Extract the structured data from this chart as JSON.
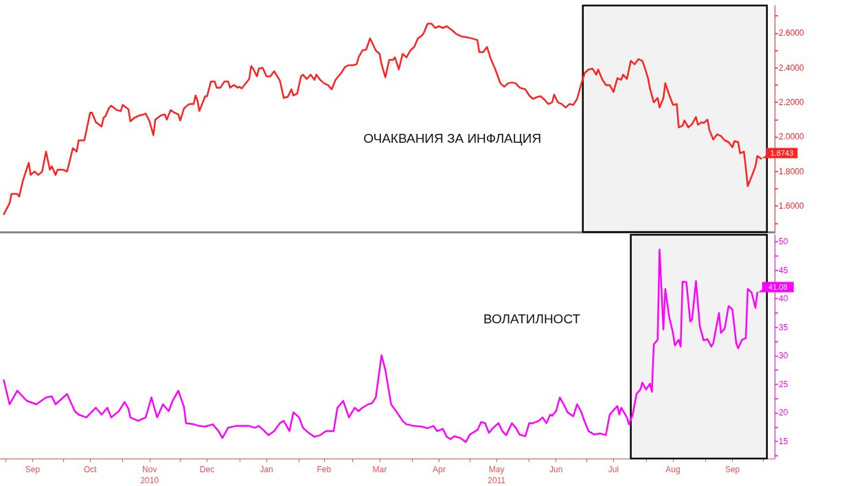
{
  "chart_data": [
    {
      "type": "line",
      "title": "ОЧАКВАНИЯ ЗА ИНФЛАЦИЯ",
      "x": [
        "2010-08-31",
        "2010-09-03",
        "2010-09-04",
        "2010-09-07",
        "2010-09-08",
        "2010-09-10",
        "2010-09-13",
        "2010-09-14",
        "2010-09-16",
        "2010-09-18",
        "2010-09-20",
        "2010-09-22",
        "2010-09-24",
        "2010-09-25",
        "2010-09-27",
        "2010-09-28",
        "2010-10-01",
        "2010-10-03",
        "2010-10-06",
        "2010-10-08",
        "2010-10-09",
        "2010-10-12",
        "2010-10-15",
        "2010-10-16",
        "2010-10-18",
        "2010-10-21",
        "2010-10-22",
        "2010-10-23",
        "2010-10-25",
        "2010-10-26",
        "2010-10-29",
        "2010-10-31",
        "2010-11-01",
        "2010-11-04",
        "2010-11-05",
        "2010-11-07",
        "2010-11-10",
        "2010-11-12",
        "2010-11-13",
        "2010-11-15",
        "2010-11-17",
        "2010-11-18",
        "2010-11-21",
        "2010-11-23",
        "2010-11-24",
        "2010-11-26",
        "2010-11-28",
        "2010-11-30",
        "2010-12-01",
        "2010-12-03",
        "2010-12-05",
        "2010-12-06",
        "2010-12-08",
        "2010-12-09",
        "2010-12-10",
        "2010-12-11",
        "2010-12-14",
        "2010-12-15",
        "2010-12-17",
        "2010-12-19",
        "2010-12-20",
        "2010-12-22",
        "2010-12-24",
        "2010-12-26",
        "2010-12-27",
        "2010-12-29",
        "2010-12-31",
        "2011-01-01",
        "2011-01-02",
        "2011-01-06",
        "2011-01-07",
        "2011-01-08",
        "2011-01-10",
        "2011-01-11",
        "2011-01-13",
        "2011-01-15",
        "2011-01-17",
        "2011-01-19",
        "2011-01-22",
        "2011-01-24",
        "2011-01-25",
        "2011-01-26",
        "2011-01-28",
        "2011-01-29",
        "2011-01-31",
        "2011-02-02",
        "2011-02-03",
        "2011-02-05",
        "2011-02-07",
        "2011-02-09",
        "2011-02-10",
        "2011-02-12",
        "2011-02-14",
        "2011-02-16",
        "2011-02-18",
        "2011-02-20",
        "2011-02-23",
        "2011-02-25",
        "2011-02-27",
        "2011-03-01",
        "2011-03-03",
        "2011-03-04",
        "2011-03-06",
        "2011-03-08",
        "2011-03-10",
        "2011-03-13",
        "2011-03-15",
        "2011-03-16",
        "2011-03-18",
        "2011-03-20",
        "2011-03-22",
        "2011-03-23",
        "2011-03-25",
        "2011-03-27",
        "2011-03-29",
        "2011-03-31",
        "2011-04-02",
        "2011-04-04",
        "2011-04-06",
        "2011-04-07",
        "2011-04-09",
        "2011-04-11",
        "2011-04-13",
        "2011-04-15",
        "2011-04-17",
        "2011-04-19",
        "2011-04-22",
        "2011-04-24",
        "2011-04-27",
        "2011-04-30",
        "2011-05-02",
        "2011-05-05",
        "2011-05-06",
        "2011-05-08",
        "2011-05-10",
        "2011-05-12",
        "2011-05-14",
        "2011-05-16",
        "2011-05-17",
        "2011-05-19",
        "2011-05-21",
        "2011-05-23",
        "2011-05-25",
        "2011-05-27",
        "2011-05-30",
        "2011-06-01",
        "2011-06-03",
        "2011-06-05",
        "2011-06-07",
        "2011-06-09",
        "2011-06-11",
        "2011-06-13",
        "2011-06-14",
        "2011-06-16",
        "2011-06-18",
        "2011-06-20",
        "2011-06-22",
        "2011-06-24",
        "2011-06-26",
        "2011-06-28",
        "2011-06-30",
        "2011-07-02",
        "2011-07-04",
        "2011-07-06",
        "2011-07-07",
        "2011-07-09",
        "2011-07-11",
        "2011-07-13",
        "2011-07-15",
        "2011-07-17",
        "2011-07-19",
        "2011-07-20",
        "2011-07-22",
        "2011-07-24",
        "2011-07-26",
        "2011-07-28",
        "2011-07-30",
        "2011-07-31",
        "2011-08-02",
        "2011-08-03",
        "2011-08-05",
        "2011-08-07",
        "2011-08-08",
        "2011-08-10",
        "2011-08-11",
        "2011-08-13",
        "2011-08-15",
        "2011-08-17",
        "2011-08-18",
        "2011-08-20",
        "2011-08-21",
        "2011-08-23",
        "2011-08-25",
        "2011-08-27",
        "2011-08-28",
        "2011-08-30",
        "2011-08-31",
        "2011-09-02",
        "2011-09-03",
        "2011-09-05",
        "2011-09-07",
        "2011-09-09",
        "2011-09-11",
        "2011-09-13",
        "2011-09-15",
        "2011-09-16",
        "2011-09-18",
        "2011-09-19",
        "2011-09-21",
        "2011-09-22",
        "2011-09-23",
        "2011-09-25",
        "2011-09-27",
        "2011-09-28",
        "2011-09-30"
      ],
      "series": [
        {
          "color": "#ff2020",
          "values": [
            1.553,
            1.616,
            1.67,
            1.67,
            1.655,
            1.75,
            1.85,
            1.78,
            1.8,
            1.78,
            1.8,
            1.915,
            1.81,
            1.83,
            1.78,
            1.81,
            1.81,
            1.8,
            1.935,
            1.915,
            1.98,
            1.98,
            2.14,
            2.14,
            2.085,
            2.06,
            2.11,
            2.12,
            2.17,
            2.18,
            2.155,
            2.15,
            2.185,
            2.16,
            2.09,
            2.11,
            2.125,
            2.13,
            2.135,
            2.09,
            2.01,
            2.1,
            2.125,
            2.13,
            2.1,
            2.155,
            2.14,
            2.13,
            2.095,
            2.165,
            2.185,
            2.19,
            2.19,
            2.24,
            2.21,
            2.15,
            2.235,
            2.235,
            2.32,
            2.32,
            2.285,
            2.285,
            2.32,
            2.32,
            2.285,
            2.3,
            2.285,
            2.29,
            2.28,
            2.335,
            2.41,
            2.395,
            2.35,
            2.395,
            2.4,
            2.35,
            2.35,
            2.38,
            2.325,
            2.225,
            2.23,
            2.23,
            2.275,
            2.24,
            2.25,
            2.35,
            2.36,
            2.335,
            2.36,
            2.33,
            2.36,
            2.33,
            2.31,
            2.3,
            2.275,
            2.33,
            2.37,
            2.405,
            2.415,
            2.415,
            2.42,
            2.46,
            2.5,
            2.505,
            2.57,
            2.5,
            2.48,
            2.42,
            2.345,
            2.445,
            2.445,
            2.46,
            2.39,
            2.48,
            2.46,
            2.5,
            2.52,
            2.57,
            2.585,
            2.6,
            2.655,
            2.655,
            2.63,
            2.64,
            2.63,
            2.64,
            2.615,
            2.595,
            2.58,
            2.575,
            2.57,
            2.56,
            2.49,
            2.49,
            2.52,
            2.45,
            2.4,
            2.34,
            2.31,
            2.29,
            2.31,
            2.315,
            2.31,
            2.285,
            2.275,
            2.24,
            2.22,
            2.23,
            2.235,
            2.215,
            2.19,
            2.2,
            2.245,
            2.2,
            2.19,
            2.17,
            2.19,
            2.185,
            2.22,
            2.3,
            2.37,
            2.39,
            2.395,
            2.36,
            2.39,
            2.335,
            2.3,
            2.3,
            2.26,
            2.34,
            2.33,
            2.36,
            2.335,
            2.44,
            2.42,
            2.45,
            2.44,
            2.41,
            2.34,
            2.28,
            2.2,
            2.225,
            2.17,
            2.225,
            2.31,
            2.245,
            2.185,
            2.19,
            2.055,
            2.065,
            2.095,
            2.055,
            2.075,
            2.115,
            2.07,
            2.085,
            2.08,
            2.1,
            2.04,
            1.985,
            2.015,
            2.005,
            1.98,
            1.97,
            1.94,
            1.975,
            1.97,
            1.905,
            1.915,
            1.82,
            1.715,
            1.77,
            1.83,
            1.89,
            1.8743
          ]
        }
      ],
      "xlim": [
        "2010-08-29",
        "2011-10-07"
      ],
      "ylim": [
        1.45,
        2.76
      ],
      "yticks": [
        {
          "value": 1.5,
          "label": null
        },
        {
          "value": 1.6,
          "label": "1.6000"
        },
        {
          "value": 1.7,
          "label": null
        },
        {
          "value": 1.8,
          "label": "1.8000"
        },
        {
          "value": 1.9,
          "label": null
        },
        {
          "value": 2.0,
          "label": "2.0000"
        },
        {
          "value": 2.1,
          "label": null
        },
        {
          "value": 2.2,
          "label": "2.2000"
        },
        {
          "value": 2.3,
          "label": null
        },
        {
          "value": 2.4,
          "label": "2.4000"
        },
        {
          "value": 2.5,
          "label": null
        },
        {
          "value": 2.6,
          "label": "2.6000"
        },
        {
          "value": 2.7,
          "label": null
        }
      ],
      "tick_labels": "y",
      "marker": "none",
      "line_style": "solid",
      "annotations": [
        {
          "text": "1.8743",
          "x": "2011-09-30",
          "y": 1.8743
        }
      ],
      "bands": [
        {
          "axis": "x",
          "from": "2011-06-29",
          "to": "2011-10-03",
          "color": "#000000"
        }
      ]
    },
    {
      "type": "line",
      "title": "ВОЛАТИЛНОСТ",
      "x": [
        "2010-08-31",
        "2010-09-03",
        "2010-09-07",
        "2010-09-12",
        "2010-09-17",
        "2010-09-22",
        "2010-09-25",
        "2010-09-27",
        "2010-10-01",
        "2010-10-03",
        "2010-10-07",
        "2010-10-09",
        "2010-10-13",
        "2010-10-18",
        "2010-10-21",
        "2010-10-24",
        "2010-10-26",
        "2010-10-30",
        "2010-11-02",
        "2010-11-04",
        "2010-11-05",
        "2010-11-09",
        "2010-11-13",
        "2010-11-16",
        "2010-11-17",
        "2010-11-19",
        "2010-11-22",
        "2010-11-25",
        "2010-11-27",
        "2010-11-30",
        "2010-12-03",
        "2010-12-04",
        "2010-12-08",
        "2010-12-11",
        "2010-12-14",
        "2010-12-18",
        "2010-12-21",
        "2010-12-23",
        "2010-12-26",
        "2010-12-30",
        "2011-01-02",
        "2011-01-06",
        "2011-01-09",
        "2011-01-11",
        "2011-01-14",
        "2011-01-16",
        "2011-01-19",
        "2011-01-22",
        "2011-01-24",
        "2011-01-27",
        "2011-01-29",
        "2011-02-01",
        "2011-02-03",
        "2011-02-06",
        "2011-02-09",
        "2011-02-12",
        "2011-02-15",
        "2011-02-19",
        "2011-02-21",
        "2011-02-24",
        "2011-02-27",
        "2011-03-02",
        "2011-03-04",
        "2011-03-06",
        "2011-03-09",
        "2011-03-11",
        "2011-03-13",
        "2011-03-16",
        "2011-03-18",
        "2011-03-21",
        "2011-03-24",
        "2011-03-27",
        "2011-03-29",
        "2011-04-02",
        "2011-04-06",
        "2011-04-09",
        "2011-04-12",
        "2011-04-14",
        "2011-04-17",
        "2011-04-19",
        "2011-04-21",
        "2011-04-23",
        "2011-04-26",
        "2011-04-29",
        "2011-05-01",
        "2011-05-05",
        "2011-05-07",
        "2011-05-09",
        "2011-05-11",
        "2011-05-13",
        "2011-05-16",
        "2011-05-18",
        "2011-05-20",
        "2011-05-23",
        "2011-05-25",
        "2011-05-27",
        "2011-05-30",
        "2011-06-01",
        "2011-06-03",
        "2011-06-06",
        "2011-06-08",
        "2011-06-10",
        "2011-06-12",
        "2011-06-13",
        "2011-06-15",
        "2011-06-17",
        "2011-06-19",
        "2011-06-21",
        "2011-06-24",
        "2011-06-26",
        "2011-06-28",
        "2011-06-30",
        "2011-07-02",
        "2011-07-05",
        "2011-07-08",
        "2011-07-11",
        "2011-07-13",
        "2011-07-14",
        "2011-07-17",
        "2011-07-18",
        "2011-07-19",
        "2011-07-22",
        "2011-07-23",
        "2011-07-25",
        "2011-07-27",
        "2011-07-29",
        "2011-07-30",
        "2011-08-01",
        "2011-08-03",
        "2011-08-04",
        "2011-08-05",
        "2011-08-07",
        "2011-08-08",
        "2011-08-10",
        "2011-08-11",
        "2011-08-13",
        "2011-08-15",
        "2011-08-16",
        "2011-08-18",
        "2011-08-19",
        "2011-08-20",
        "2011-08-22",
        "2011-08-24",
        "2011-08-25",
        "2011-08-27",
        "2011-08-29",
        "2011-08-31",
        "2011-09-02",
        "2011-09-04",
        "2011-09-05",
        "2011-09-08",
        "2011-09-09",
        "2011-09-11",
        "2011-09-13",
        "2011-09-15",
        "2011-09-17",
        "2011-09-18",
        "2011-09-20",
        "2011-09-22",
        "2011-09-23",
        "2011-09-25",
        "2011-09-27",
        "2011-09-28"
      ],
      "series": [
        {
          "color": "#ff00ff",
          "values": [
            25.7,
            21.5,
            23.9,
            22.1,
            21.5,
            22.7,
            22.9,
            21.5,
            22.7,
            23.3,
            20.3,
            19.7,
            19.2,
            20.9,
            19.7,
            20.9,
            19.2,
            20.3,
            21.9,
            20.7,
            19.2,
            18.6,
            19.2,
            22.7,
            21.5,
            19.2,
            21.5,
            20.3,
            22.1,
            23.9,
            21.0,
            18.2,
            18.0,
            17.7,
            17.6,
            18.0,
            16.8,
            15.6,
            17.4,
            17.7,
            17.7,
            17.7,
            17.4,
            17.7,
            16.8,
            16.1,
            16.8,
            18.2,
            18.6,
            16.8,
            20.1,
            19.2,
            17.4,
            16.5,
            15.8,
            16.1,
            16.8,
            16.8,
            20.9,
            22.1,
            19.2,
            20.9,
            20.3,
            20.9,
            21.5,
            21.7,
            22.7,
            30.1,
            27.5,
            21.5,
            20.1,
            18.6,
            18.0,
            17.7,
            17.6,
            17.3,
            17.7,
            16.8,
            17.2,
            15.8,
            15.4,
            15.9,
            15.6,
            14.9,
            16.2,
            17.0,
            18.4,
            18.2,
            16.5,
            17.3,
            18.2,
            16.8,
            16.1,
            18.2,
            17.4,
            16.2,
            15.9,
            18.2,
            18.2,
            18.6,
            19.2,
            18.2,
            19.7,
            19.5,
            20.3,
            22.7,
            21.5,
            20.1,
            19.4,
            21.5,
            20.3,
            18.4,
            16.8,
            16.2,
            16.4,
            16.1,
            19.7,
            20.1,
            21.2,
            19.7,
            20.9,
            19.2,
            18.0,
            19.7,
            23.3,
            24.1,
            25.3,
            24.1,
            25.1,
            23.7,
            32.0,
            32.8,
            48.6,
            34.6,
            41.7,
            36.9,
            34.0,
            31.8,
            32.8,
            31.6,
            43.0,
            42.9,
            36.0,
            36.4,
            43.1,
            35.2,
            32.7,
            32.9,
            31.6,
            32.2,
            37.5,
            34.0,
            34.8,
            38.7,
            38.1,
            32.2,
            31.3,
            32.8,
            33.1,
            41.7,
            41.1,
            38.4,
            41.08
          ]
        }
      ],
      "xlim": [
        "2010-08-29",
        "2011-10-07"
      ],
      "xticks": [
        {
          "value": "2010-09-01",
          "label": null
        },
        {
          "value": "2010-09-15",
          "label": "Sep"
        },
        {
          "value": "2010-10-01",
          "label": null
        },
        {
          "value": "2010-10-15",
          "label": "Oct"
        },
        {
          "value": "2010-11-01",
          "label": null
        },
        {
          "value": "2010-11-15",
          "label": "Nov\n2010"
        },
        {
          "value": "2010-12-01",
          "label": null
        },
        {
          "value": "2010-12-15",
          "label": "Dec"
        },
        {
          "value": "2011-01-01",
          "label": null
        },
        {
          "value": "2011-01-15",
          "label": "Jan"
        },
        {
          "value": "2011-02-01",
          "label": null
        },
        {
          "value": "2011-02-14",
          "label": "Feb"
        },
        {
          "value": "2011-03-01",
          "label": null
        },
        {
          "value": "2011-03-15",
          "label": "Mar"
        },
        {
          "value": "2011-04-01",
          "label": null
        },
        {
          "value": "2011-04-15",
          "label": "Apr"
        },
        {
          "value": "2011-05-01",
          "label": null
        },
        {
          "value": "2011-05-15",
          "label": "May\n2011"
        },
        {
          "value": "2011-06-01",
          "label": null
        },
        {
          "value": "2011-06-15",
          "label": "Jun"
        },
        {
          "value": "2011-07-01",
          "label": null
        },
        {
          "value": "2011-07-15",
          "label": "Jul"
        },
        {
          "value": "2011-08-01",
          "label": null
        },
        {
          "value": "2011-08-15",
          "label": "Aug"
        },
        {
          "value": "2011-09-01",
          "label": null
        },
        {
          "value": "2011-09-15",
          "label": "Sep"
        },
        {
          "value": "2011-10-01",
          "label": null
        }
      ],
      "ylim": [
        12,
        51.2
      ],
      "yticks": [
        {
          "value": 12.5,
          "label": null
        },
        15,
        {
          "value": 17.5,
          "label": null
        },
        20,
        {
          "value": 22.5,
          "label": null
        },
        25,
        {
          "value": 27.5,
          "label": null
        },
        30,
        {
          "value": 32.5,
          "label": null
        },
        35,
        {
          "value": 37.5,
          "label": null
        },
        40,
        {
          "value": 42.5,
          "label": null
        },
        45,
        {
          "value": 47.5,
          "label": null
        },
        50
      ],
      "marker": "none",
      "line_style": "solid",
      "annotations": [
        {
          "text": "41.08",
          "x": "2011-09-28",
          "y": 41.08
        }
      ],
      "bands": [
        {
          "axis": "x",
          "from": "2011-07-24",
          "to": "2011-10-03",
          "color": "#000000"
        }
      ]
    }
  ]
}
